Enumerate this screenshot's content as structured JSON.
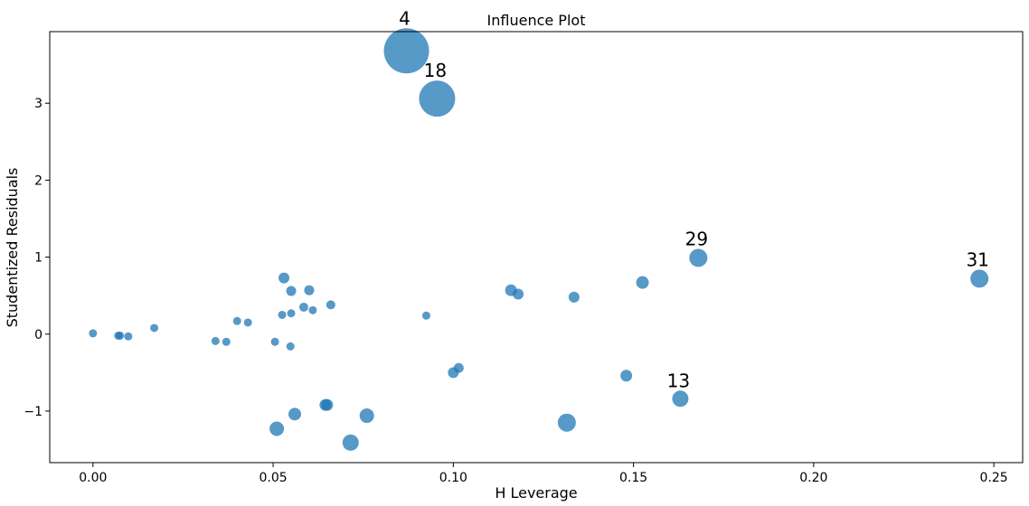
{
  "chart_data": {
    "type": "scatter",
    "title": "Influence Plot",
    "xlabel": "H Leverage",
    "ylabel": "Studentized Residuals",
    "xlim": [
      -0.012,
      0.258
    ],
    "ylim": [
      -1.67,
      3.93
    ],
    "xticks": [
      0.0,
      0.05,
      0.1,
      0.15,
      0.2,
      0.25
    ],
    "xtick_labels": [
      "0.00",
      "0.05",
      "0.10",
      "0.15",
      "0.20",
      "0.25"
    ],
    "yticks": [
      -1,
      0,
      1,
      2,
      3
    ],
    "ytick_labels": [
      "−1",
      "0",
      "1",
      "2",
      "3"
    ],
    "grid": false,
    "point_color": "#1f77b4",
    "point_alpha": 0.75,
    "size_note": "marker size reflects influence (Cook's distance)",
    "points": [
      {
        "x": 0.087,
        "y": 3.68,
        "r": 25,
        "label": "4"
      },
      {
        "x": 0.0955,
        "y": 3.06,
        "r": 20,
        "label": "18"
      },
      {
        "x": 0.168,
        "y": 0.99,
        "r": 10,
        "label": "29"
      },
      {
        "x": 0.246,
        "y": 0.72,
        "r": 10,
        "label": "31"
      },
      {
        "x": 0.163,
        "y": -0.84,
        "r": 9,
        "label": "13"
      },
      {
        "x": 0.0,
        "y": 0.01,
        "r": 4.5
      },
      {
        "x": 0.007,
        "y": -0.02,
        "r": 4.5
      },
      {
        "x": 0.0075,
        "y": -0.02,
        "r": 4.5
      },
      {
        "x": 0.0098,
        "y": -0.03,
        "r": 4.5
      },
      {
        "x": 0.017,
        "y": 0.08,
        "r": 4.5
      },
      {
        "x": 0.034,
        "y": -0.09,
        "r": 4.5
      },
      {
        "x": 0.037,
        "y": -0.1,
        "r": 4.5
      },
      {
        "x": 0.04,
        "y": 0.17,
        "r": 4.5
      },
      {
        "x": 0.043,
        "y": 0.15,
        "r": 4.5
      },
      {
        "x": 0.0505,
        "y": -0.1,
        "r": 4.5
      },
      {
        "x": 0.0525,
        "y": 0.25,
        "r": 4.5
      },
      {
        "x": 0.053,
        "y": 0.73,
        "r": 6
      },
      {
        "x": 0.0548,
        "y": -0.16,
        "r": 4.5
      },
      {
        "x": 0.055,
        "y": 0.27,
        "r": 4.5
      },
      {
        "x": 0.055,
        "y": 0.56,
        "r": 5.5
      },
      {
        "x": 0.0585,
        "y": 0.35,
        "r": 5
      },
      {
        "x": 0.06,
        "y": 0.57,
        "r": 5.5
      },
      {
        "x": 0.061,
        "y": 0.31,
        "r": 4.5
      },
      {
        "x": 0.066,
        "y": 0.38,
        "r": 5
      },
      {
        "x": 0.0925,
        "y": 0.24,
        "r": 4.5
      },
      {
        "x": 0.1,
        "y": -0.5,
        "r": 6
      },
      {
        "x": 0.1015,
        "y": -0.44,
        "r": 5.5
      },
      {
        "x": 0.116,
        "y": 0.57,
        "r": 6.5
      },
      {
        "x": 0.118,
        "y": 0.52,
        "r": 6
      },
      {
        "x": 0.1335,
        "y": 0.48,
        "r": 6
      },
      {
        "x": 0.148,
        "y": -0.54,
        "r": 6.5
      },
      {
        "x": 0.1525,
        "y": 0.67,
        "r": 7
      },
      {
        "x": 0.051,
        "y": -1.23,
        "r": 8
      },
      {
        "x": 0.056,
        "y": -1.04,
        "r": 7
      },
      {
        "x": 0.0645,
        "y": -0.92,
        "r": 6.5
      },
      {
        "x": 0.065,
        "y": -0.92,
        "r": 6.5
      },
      {
        "x": 0.0715,
        "y": -1.41,
        "r": 9
      },
      {
        "x": 0.076,
        "y": -1.06,
        "r": 8
      },
      {
        "x": 0.1315,
        "y": -1.15,
        "r": 10
      }
    ]
  }
}
